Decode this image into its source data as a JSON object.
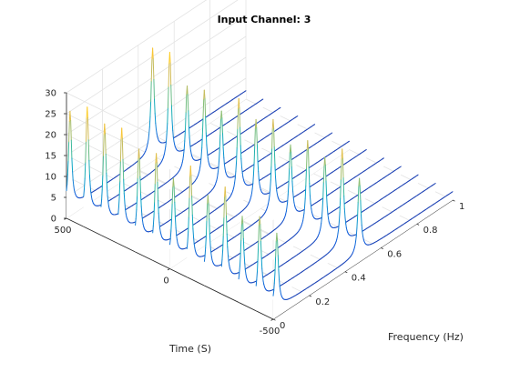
{
  "chart_data": {
    "type": "waterfall-3d",
    "title": "Input Channel: 3",
    "xlabel": "Frequency (Hz)",
    "ylabel": "Time (S)",
    "zlabel": "",
    "xlim": [
      0,
      1
    ],
    "ylim": [
      -500,
      500
    ],
    "zlim": [
      0,
      30
    ],
    "x_ticks": [
      "0",
      "0.2",
      "0.4",
      "0.6",
      "0.8",
      "1"
    ],
    "y_ticks": [
      "500",
      "0",
      "-500"
    ],
    "z_ticks": [
      "0",
      "5",
      "10",
      "15",
      "20",
      "25",
      "30"
    ],
    "grid": true,
    "colormap": "parula",
    "colormap_colors": [
      "#352a87",
      "#0f5cdd",
      "#1481d6",
      "#06a4ca",
      "#2eb7a4",
      "#87bf77",
      "#d1bb59",
      "#fec832",
      "#f9fb0e"
    ],
    "baseline_level": 2,
    "traces": [
      {
        "time": -500,
        "peaks": [
          {
            "f": 0.02,
            "a": 20
          },
          {
            "f": 0.48,
            "a": 20
          }
        ]
      },
      {
        "time": -417,
        "peaks": [
          {
            "f": 0.02,
            "a": 22
          },
          {
            "f": 0.48,
            "a": 25
          }
        ]
      },
      {
        "time": -333,
        "peaks": [
          {
            "f": 0.02,
            "a": 20
          },
          {
            "f": 0.48,
            "a": 21
          }
        ]
      },
      {
        "time": -250,
        "peaks": [
          {
            "f": 0.02,
            "a": 25
          },
          {
            "f": 0.48,
            "a": 23
          }
        ]
      },
      {
        "time": -167,
        "peaks": [
          {
            "f": 0.02,
            "a": 21
          },
          {
            "f": 0.48,
            "a": 20
          }
        ]
      },
      {
        "time": -83,
        "peaks": [
          {
            "f": 0.02,
            "a": 26
          },
          {
            "f": 0.48,
            "a": 24
          }
        ]
      },
      {
        "time": 0,
        "peaks": [
          {
            "f": 0.02,
            "a": 21
          },
          {
            "f": 0.48,
            "a": 22
          }
        ]
      },
      {
        "time": 83,
        "peaks": [
          {
            "f": 0.02,
            "a": 25
          },
          {
            "f": 0.48,
            "a": 25
          }
        ]
      },
      {
        "time": 167,
        "peaks": [
          {
            "f": 0.02,
            "a": 24
          },
          {
            "f": 0.48,
            "a": 20
          }
        ]
      },
      {
        "time": 250,
        "peaks": [
          {
            "f": 0.02,
            "a": 27
          },
          {
            "f": 0.48,
            "a": 23
          }
        ]
      },
      {
        "time": 333,
        "peaks": [
          {
            "f": 0.02,
            "a": 26
          },
          {
            "f": 0.48,
            "a": 22
          }
        ]
      },
      {
        "time": 417,
        "peaks": [
          {
            "f": 0.02,
            "a": 28
          },
          {
            "f": 0.48,
            "a": 28
          }
        ]
      },
      {
        "time": 500,
        "peaks": [
          {
            "f": 0.02,
            "a": 25
          },
          {
            "f": 0.48,
            "a": 27
          }
        ]
      }
    ]
  }
}
